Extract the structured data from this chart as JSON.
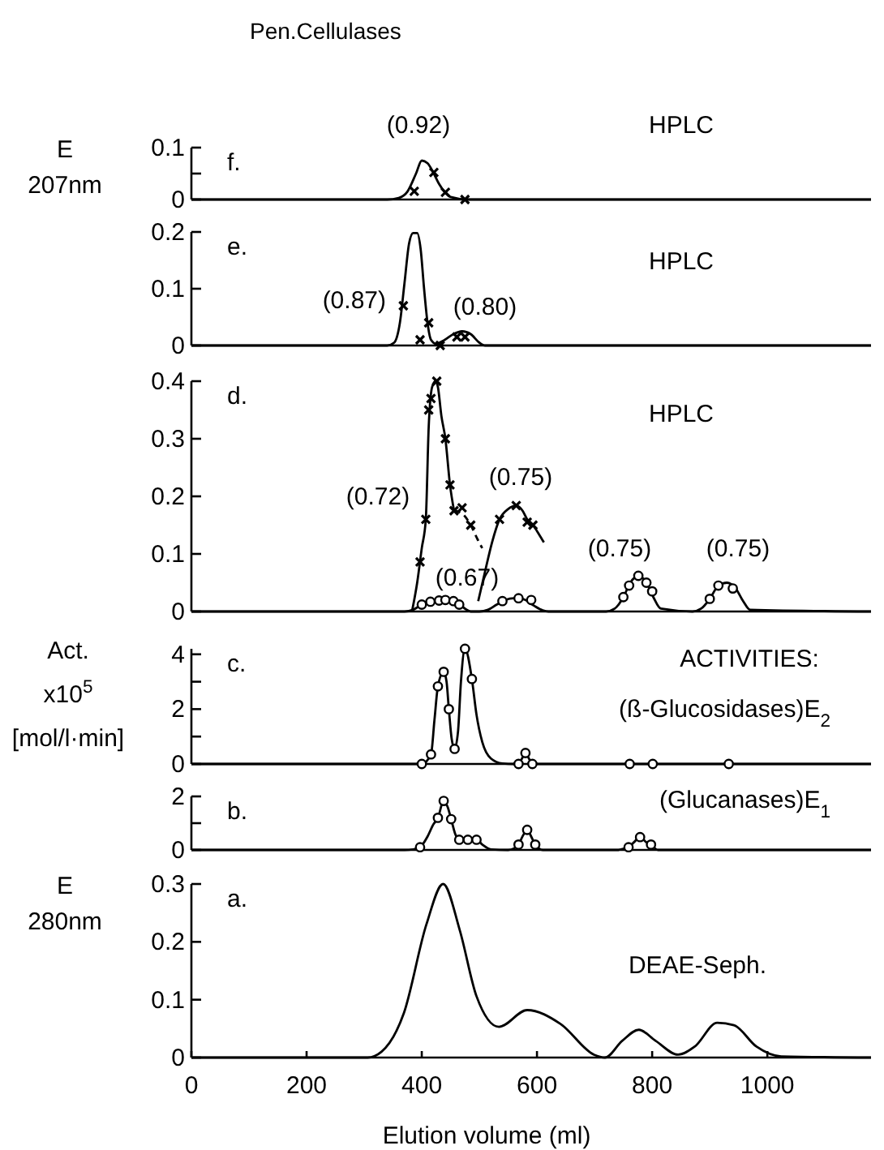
{
  "chart_data": [
    {
      "type": "line",
      "title": "Pen.Cellulases",
      "ylabel": "E\n207nm",
      "xlim": [
        0,
        1180
      ],
      "xticks": [
        0,
        200,
        400,
        600,
        800,
        1000
      ],
      "ylim": [
        0,
        0.1
      ],
      "yticks": [
        0,
        {
          "value": 0.05,
          "label": null
        },
        0.1
      ],
      "tick_labels": "y",
      "annotations": [
        "f.",
        "HPLC",
        "(0.92)"
      ],
      "series": [
        {
          "type": "line",
          "color": "#000000",
          "marker": "none",
          "x": [
            0,
            340,
            360,
            375,
            390,
            400,
            410,
            420,
            430,
            440,
            450,
            480,
            1180
          ],
          "values": [
            0,
            0,
            0.003,
            0.015,
            0.05,
            0.075,
            0.07,
            0.052,
            0.03,
            0.014,
            0.005,
            0,
            0
          ]
        },
        {
          "type": "scatter",
          "color": "#000000",
          "marker": "cross",
          "x": [
            387,
            421,
            441,
            475
          ],
          "values": [
            0.016,
            0.052,
            0.014,
            0
          ]
        }
      ]
    },
    {
      "type": "line",
      "xlim": [
        0,
        1180
      ],
      "xticks": [
        0,
        200,
        400,
        600,
        800,
        1000
      ],
      "ylim": [
        0,
        0.2
      ],
      "yticks": [
        0,
        0.1,
        0.2
      ],
      "tick_labels": "y",
      "annotations": [
        "e.",
        "HPLC",
        "(0.87)",
        "(0.80)"
      ],
      "series": [
        {
          "type": "line",
          "color": "#000000",
          "marker": "none",
          "x": [
            0,
            340,
            352,
            362,
            370,
            378,
            385,
            392,
            398,
            404,
            410,
            416,
            425,
            440,
            455,
            470,
            485,
            500,
            510,
            1180
          ],
          "values": [
            0,
            0,
            0.005,
            0.04,
            0.11,
            0.18,
            0.198,
            0.198,
            0.17,
            0.1,
            0.04,
            0.01,
            0.003,
            0.01,
            0.02,
            0.025,
            0.02,
            0.005,
            0,
            0
          ]
        },
        {
          "type": "scatter",
          "color": "#000000",
          "marker": "cross",
          "x": [
            368,
            397,
            412,
            432,
            461,
            475
          ],
          "values": [
            0.07,
            0.01,
            0.04,
            0,
            0.015,
            0.015
          ]
        }
      ]
    },
    {
      "type": "line",
      "xlim": [
        0,
        1180
      ],
      "xticks": [
        0,
        200,
        400,
        600,
        800,
        1000
      ],
      "ylim": [
        0,
        0.4
      ],
      "yticks": [
        0,
        0.1,
        0.2,
        0.3,
        0.4
      ],
      "tick_labels": "y",
      "annotations": [
        "d.",
        "HPLC",
        "(0.72)",
        "(0.75)",
        "(0.67)",
        "(0.75)",
        "(0.75)"
      ],
      "series": [
        {
          "type": "line",
          "color": "#000000",
          "marker": "none",
          "x": [
            383,
            392,
            400,
            407,
            412,
            418,
            424,
            428,
            434,
            441,
            449,
            456
          ],
          "values": [
            0,
            0.05,
            0.11,
            0.16,
            0.32,
            0.39,
            0.4,
            0.39,
            0.34,
            0.3,
            0.22,
            0.175
          ]
        },
        {
          "type": "line",
          "color": "#000000",
          "marker": "none",
          "line_style": "dashed",
          "x": [
            456,
            470,
            485,
            497,
            505
          ],
          "values": [
            0.175,
            0.17,
            0.15,
            0.125,
            0.11
          ]
        },
        {
          "type": "scatter",
          "color": "#000000",
          "marker": "cross",
          "x": [
            397,
            407,
            412,
            416,
            426,
            441,
            449,
            456,
            470,
            485
          ],
          "values": [
            0.086,
            0.16,
            0.35,
            0.37,
            0.4,
            0.3,
            0.22,
            0.175,
            0.18,
            0.15
          ]
        },
        {
          "type": "line",
          "color": "#000000",
          "marker": "none",
          "x": [
            498,
            510,
            522,
            535,
            550,
            564,
            575,
            583,
            593,
            603,
            612
          ],
          "values": [
            0.018,
            0.07,
            0.12,
            0.16,
            0.178,
            0.184,
            0.175,
            0.16,
            0.15,
            0.135,
            0.12
          ]
        },
        {
          "type": "scatter",
          "color": "#000000",
          "marker": "cross",
          "x": [
            535,
            564,
            583,
            593
          ],
          "values": [
            0.16,
            0.184,
            0.155,
            0.15
          ]
        },
        {
          "type": "line",
          "color": "#000000",
          "marker": "none",
          "x": [
            0,
            370,
            385,
            400,
            415,
            430,
            441,
            455,
            465,
            475,
            485,
            500,
            515,
            530,
            545,
            560,
            568,
            580,
            595,
            610,
            620,
            720,
            735,
            750,
            762,
            776,
            790,
            802,
            815,
            870,
            885,
            900,
            915,
            930,
            945,
            958,
            970,
            1180
          ],
          "values": [
            0,
            0,
            0.003,
            0.012,
            0.017,
            0.019,
            0.02,
            0.018,
            0.012,
            0.005,
            0,
            0,
            0.003,
            0.012,
            0.02,
            0.023,
            0.023,
            0.02,
            0.01,
            0.002,
            0,
            0,
            0.005,
            0.025,
            0.05,
            0.062,
            0.05,
            0.025,
            0.005,
            0,
            0.005,
            0.022,
            0.045,
            0.05,
            0.04,
            0.018,
            0.003,
            0
          ]
        },
        {
          "type": "scatter",
          "color": "#000000",
          "marker": "circle",
          "x": [
            400,
            415,
            430,
            441,
            455,
            465,
            540,
            568,
            590,
            750,
            760,
            776,
            790,
            800,
            900,
            915,
            940
          ],
          "values": [
            0.012,
            0.017,
            0.019,
            0.02,
            0.018,
            0.012,
            0.018,
            0.023,
            0.02,
            0.025,
            0.045,
            0.062,
            0.05,
            0.035,
            0.022,
            0.045,
            0.04
          ]
        }
      ]
    },
    {
      "type": "line",
      "ylabel": "Act.\nx10$^{5}$\n[mol/l·min]",
      "xlim": [
        0,
        1180
      ],
      "xticks": [
        0,
        200,
        400,
        600,
        800,
        1000
      ],
      "ylim": [
        0,
        4.2
      ],
      "yticks": [
        0,
        {
          "value": 1,
          "label": null
        },
        2,
        {
          "value": 3,
          "label": null
        },
        4
      ],
      "tick_labels": "y",
      "annotations": [
        "c.",
        "ACTIVITIES:",
        "(ß-Glucosidases)E$_{2}$"
      ],
      "series": [
        {
          "type": "line",
          "color": "#000000",
          "marker": "none",
          "x": [
            0,
            380,
            400,
            416,
            422,
            428,
            438,
            443,
            447,
            452,
            457,
            463,
            468,
            475,
            487,
            495,
            505,
            520,
            540,
            560,
            568,
            574,
            580,
            586,
            592,
            600,
            1180
          ],
          "values": [
            0,
            0,
            0,
            0.35,
            1.6,
            2.83,
            3.36,
            3.0,
            2.0,
            0.9,
            0.55,
            1.2,
            3.0,
            4.2,
            3.1,
            1.8,
            0.8,
            0.2,
            0.02,
            0,
            0,
            0.2,
            0.4,
            0.2,
            0,
            0,
            0
          ]
        },
        {
          "type": "scatter",
          "color": "#000000",
          "marker": "circle",
          "x": [
            400,
            416,
            428,
            438,
            447,
            457,
            475,
            487,
            568,
            580,
            592,
            761,
            801,
            933
          ],
          "values": [
            0,
            0.35,
            2.83,
            3.36,
            2.0,
            0.55,
            4.2,
            3.1,
            0,
            0.4,
            0,
            0,
            0,
            0
          ]
        }
      ]
    },
    {
      "type": "line",
      "xlim": [
        0,
        1180
      ],
      "xticks": [
        0,
        200,
        400,
        600,
        800,
        1000
      ],
      "ylim": [
        0,
        2
      ],
      "yticks": [
        0,
        {
          "value": 1,
          "label": null
        },
        2
      ],
      "tick_labels": "y",
      "annotations": [
        "b.",
        "(Glucanases)E$_{1}$"
      ],
      "series": [
        {
          "type": "line",
          "color": "#000000",
          "marker": "none",
          "x": [
            0,
            370,
            385,
            397,
            410,
            420,
            428,
            438,
            445,
            451,
            458,
            465,
            472,
            480,
            488,
            495,
            505,
            520,
            550,
            560,
            568,
            576,
            583,
            590,
            597,
            610,
            740,
            750,
            759,
            769,
            779,
            789,
            798,
            810,
            1180
          ],
          "values": [
            0,
            0,
            0.02,
            0.1,
            0.5,
            0.95,
            1.2,
            1.83,
            1.6,
            1.15,
            0.6,
            0.38,
            0.35,
            0.38,
            0.35,
            0.38,
            0.2,
            0.02,
            0,
            0.05,
            0.2,
            0.55,
            0.75,
            0.5,
            0.2,
            0,
            0,
            0.04,
            0.1,
            0.3,
            0.48,
            0.3,
            0.2,
            0,
            0
          ]
        },
        {
          "type": "scatter",
          "color": "#000000",
          "marker": "circle",
          "x": [
            397,
            428,
            438,
            451,
            465,
            480,
            495,
            568,
            583,
            597,
            759,
            779,
            798
          ],
          "values": [
            0.1,
            1.2,
            1.83,
            1.15,
            0.38,
            0.38,
            0.38,
            0.2,
            0.75,
            0.2,
            0.1,
            0.48,
            0.2
          ]
        }
      ]
    },
    {
      "type": "line",
      "ylabel": "E\n280nm",
      "xlabel": "Elution volume (ml)",
      "xlim": [
        0,
        1180
      ],
      "xticks": [
        0,
        200,
        400,
        600,
        800,
        1000
      ],
      "ylim": [
        0,
        0.3
      ],
      "yticks": [
        0,
        0.1,
        0.2,
        0.3
      ],
      "annotations": [
        "a.",
        "DEAE-Seph."
      ],
      "series": [
        {
          "type": "line",
          "color": "#000000",
          "marker": "none",
          "x": [
            0,
            300,
            306,
            330,
            369,
            408,
            437,
            466,
            495,
            534,
            583,
            641,
            699,
            718,
            748,
            777,
            806,
            845,
            874,
            913,
            942,
            981,
            1024,
            1180
          ],
          "values": [
            0,
            0,
            0,
            0.01,
            0.077,
            0.23,
            0.3,
            0.22,
            0.106,
            0.053,
            0.082,
            0.058,
            0.005,
            0,
            0.029,
            0.048,
            0.029,
            0.005,
            0.019,
            0.06,
            0.056,
            0.019,
            0.002,
            0
          ]
        }
      ]
    }
  ]
}
